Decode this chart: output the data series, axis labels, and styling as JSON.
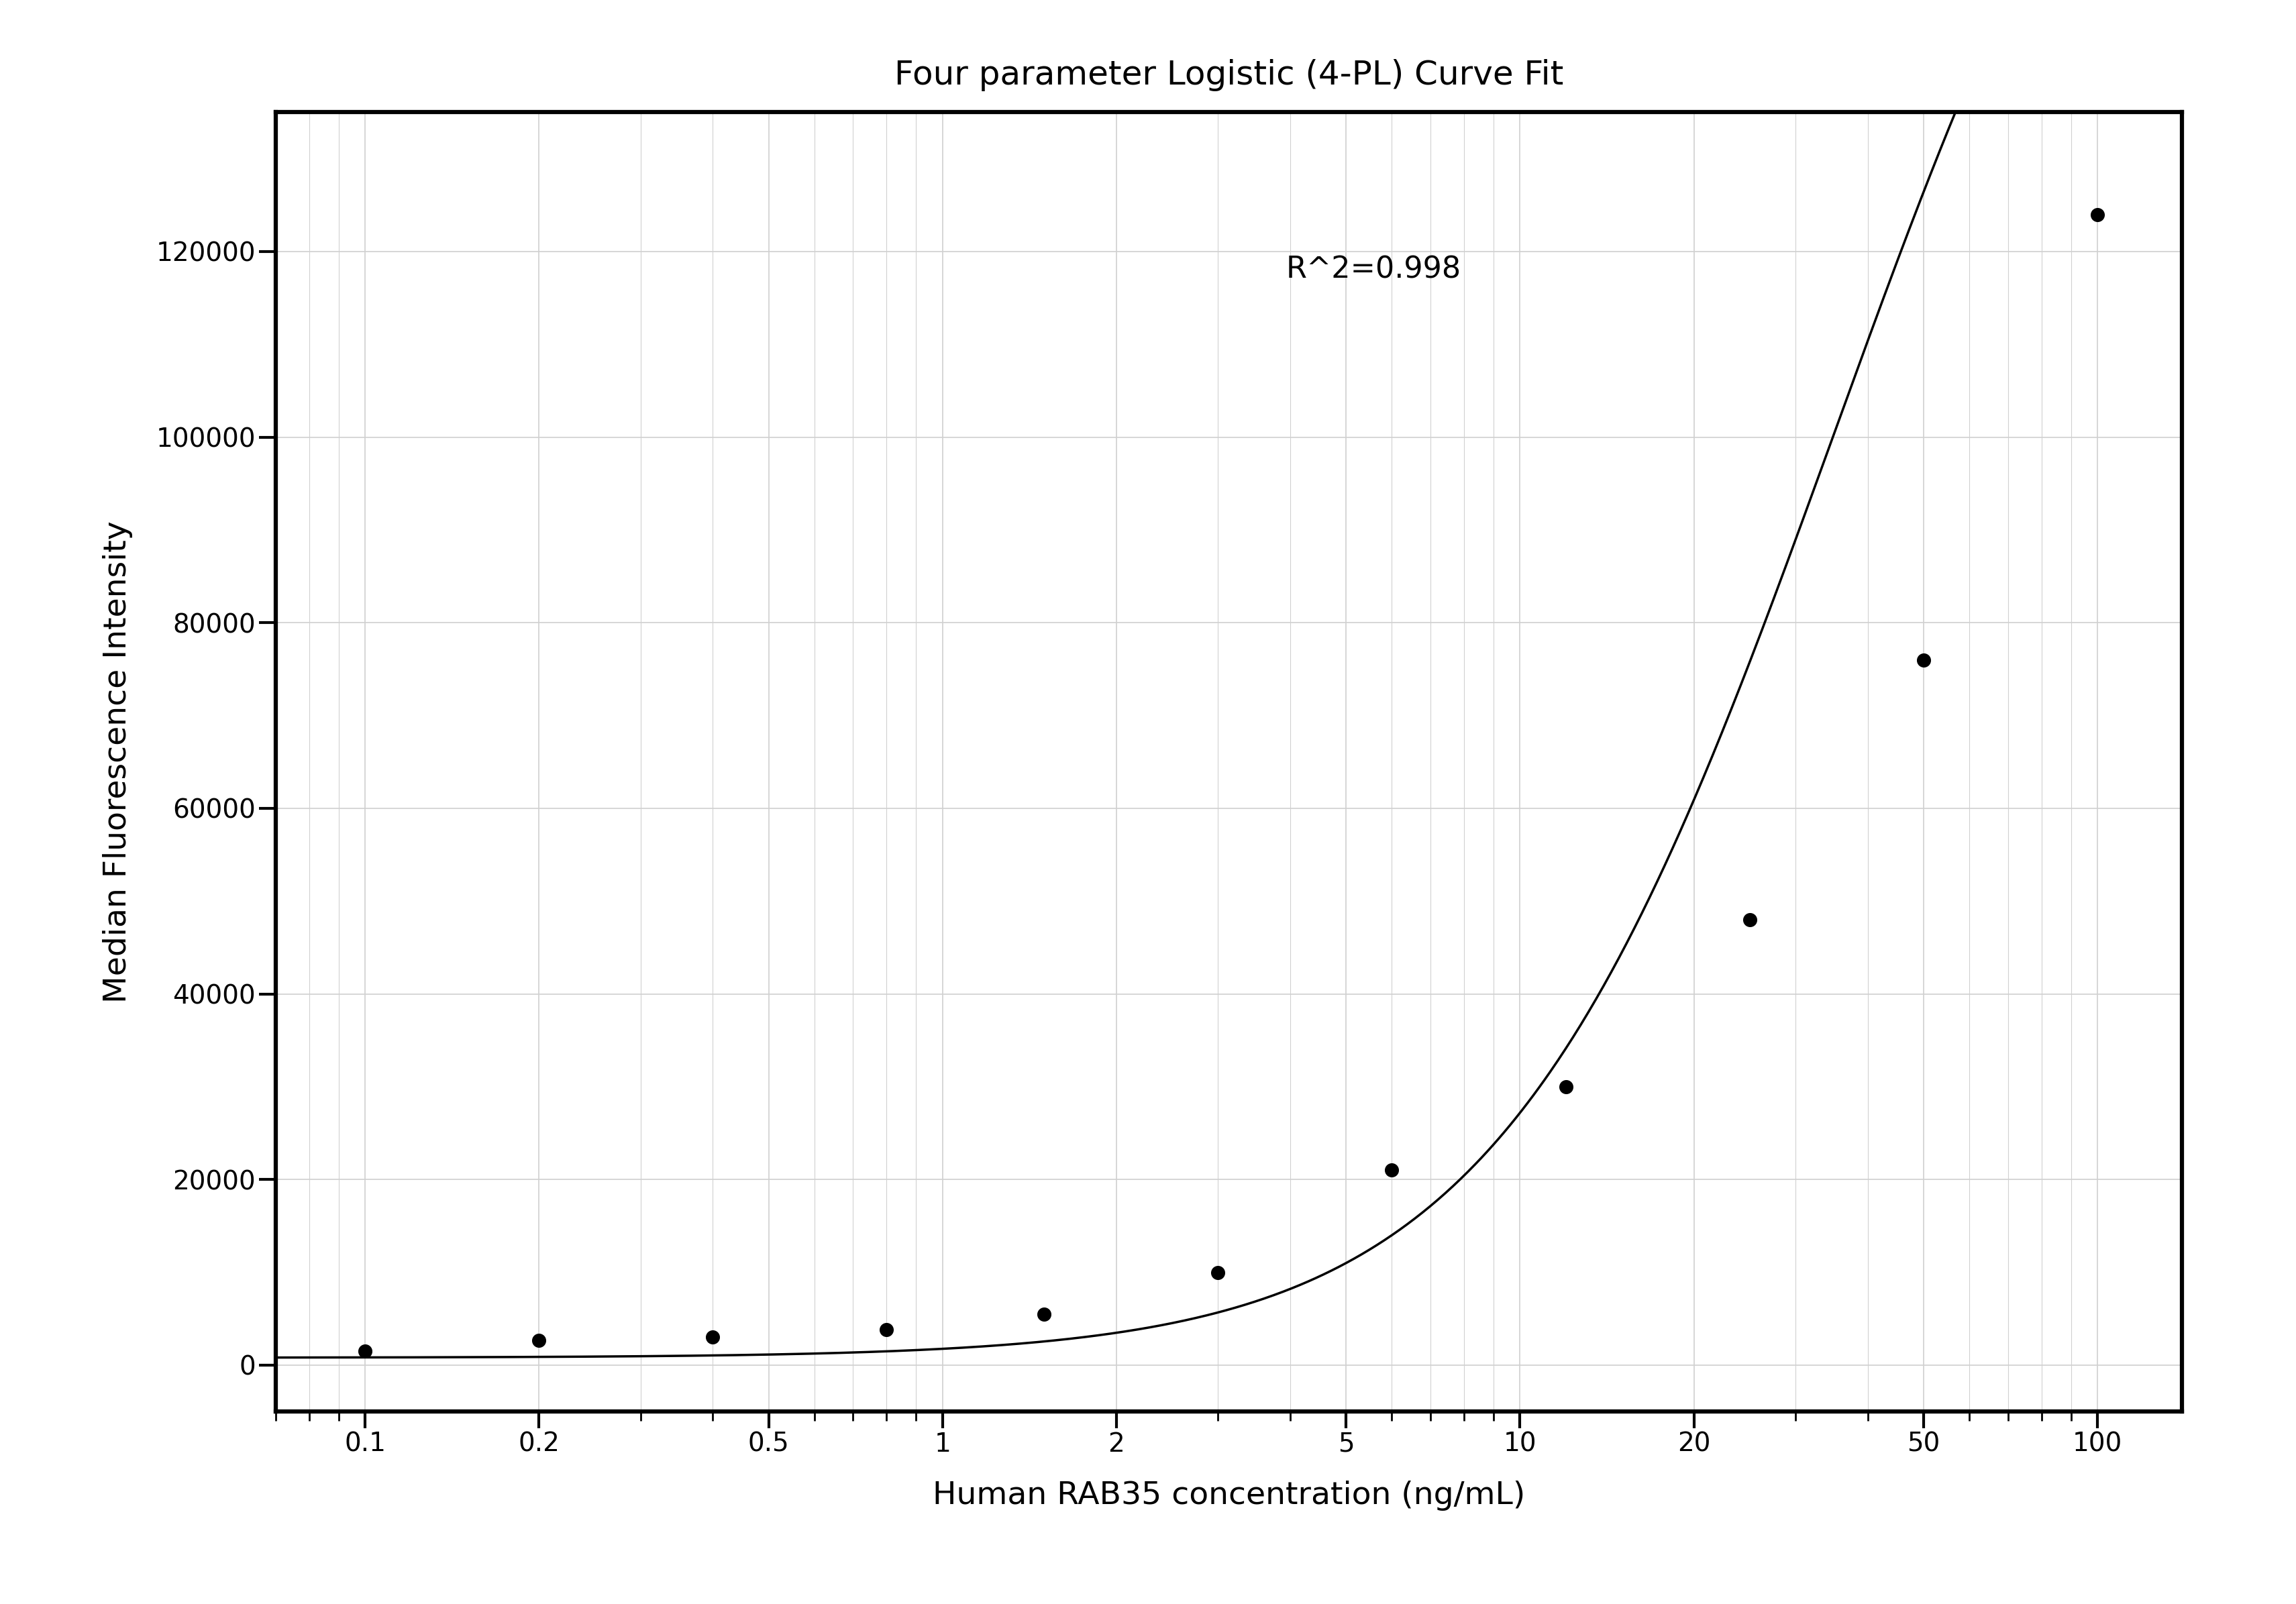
{
  "title": "Four parameter Logistic (4-PL) Curve Fit",
  "xlabel": "Human RAB35 concentration (ng/mL)",
  "ylabel": "Median Fluorescence Intensity",
  "r_squared": "R^2=0.998",
  "x_data": [
    0.1,
    0.2,
    0.4,
    0.8,
    1.5,
    3,
    6,
    12,
    25,
    50,
    100
  ],
  "y_data": [
    1500,
    2700,
    3000,
    3800,
    5500,
    10000,
    21000,
    30000,
    48000,
    76000,
    124000
  ],
  "x_ticks": [
    0.1,
    0.2,
    0.5,
    1,
    2,
    5,
    10,
    20,
    50,
    100
  ],
  "x_tick_labels": [
    "0.1",
    "0.2",
    "0.5",
    "1",
    "2",
    "5",
    "10",
    "20",
    "50",
    "100"
  ],
  "y_ticks": [
    0,
    20000,
    40000,
    60000,
    80000,
    100000,
    120000
  ],
  "y_tick_labels": [
    "0",
    "20000",
    "40000",
    "60000",
    "80000",
    "100000",
    "120000"
  ],
  "xlim": [
    0.07,
    140
  ],
  "ylim": [
    -5000,
    135000
  ],
  "grid_color": "#d0d0d0",
  "line_color": "#000000",
  "dot_color": "#000000",
  "background_color": "#ffffff",
  "title_fontsize": 36,
  "label_fontsize": 34,
  "tick_fontsize": 28,
  "annotation_fontsize": 32,
  "dot_size": 200,
  "line_width": 2.5,
  "4pl_A": 800,
  "4pl_B": 1.5,
  "4pl_C": 35,
  "4pl_D": 200000
}
